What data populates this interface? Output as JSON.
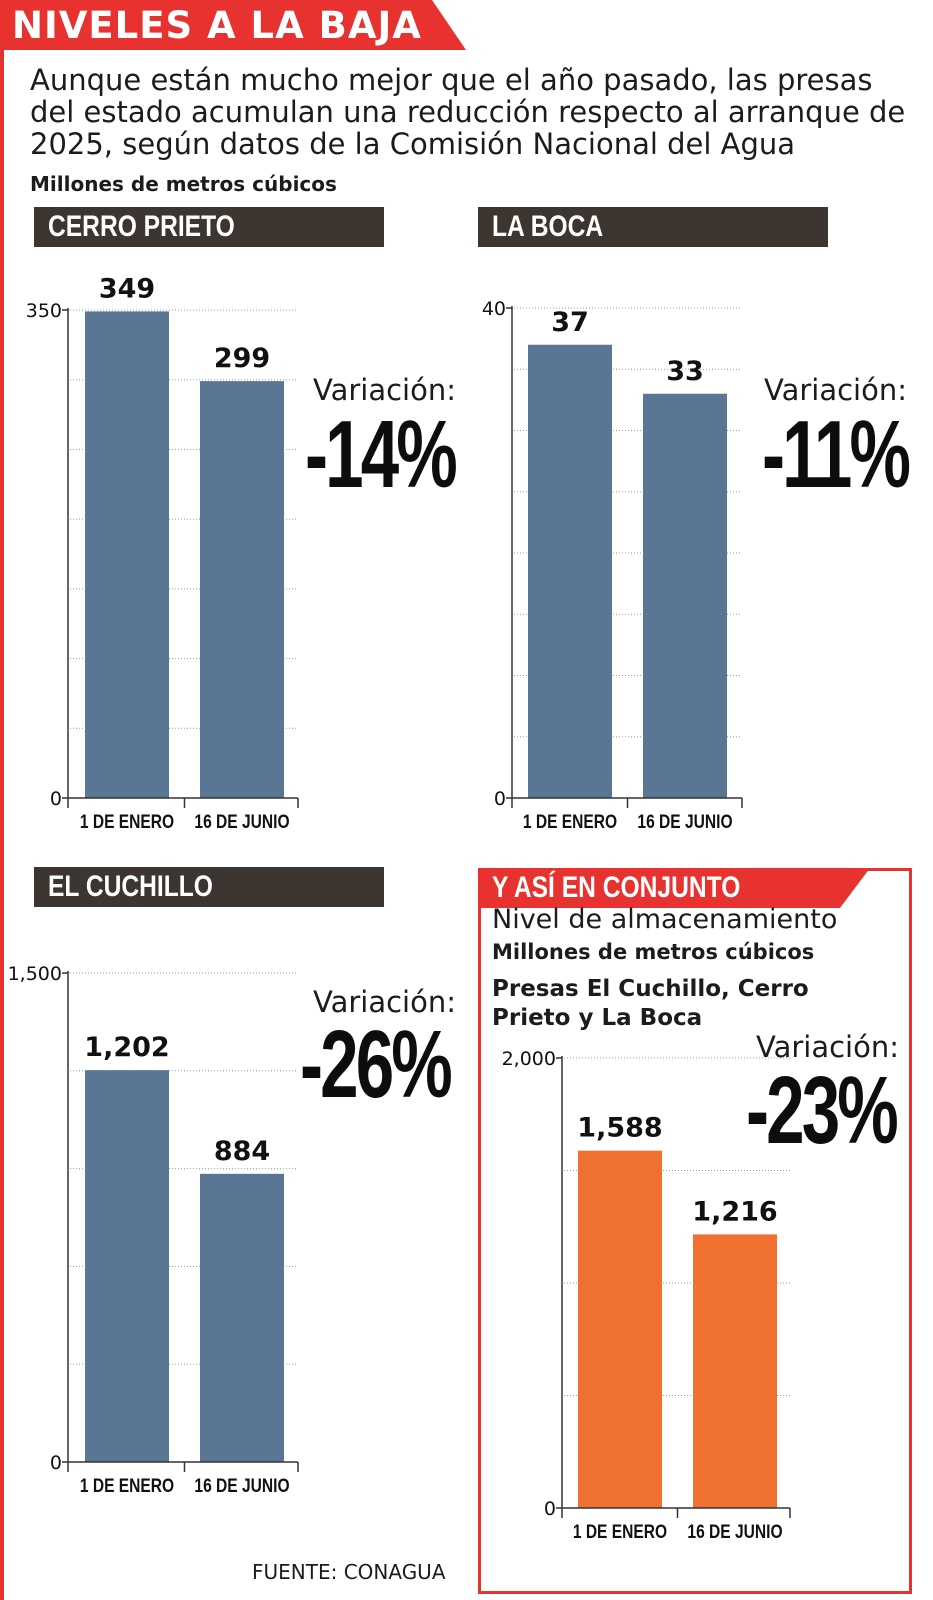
{
  "title": "NIVELES A LA BAJA",
  "intro": "Aunque están mucho mejor que el año pasado, las presas del estado acumulan una reducción respecto al arranque de 2025, según datos de la Comisión Nacional del Agua",
  "units": "Millones de metros cúbicos",
  "variation_label": "Variación:",
  "source": "FUENTE: CONAGUA",
  "total_panel": {
    "header": "Y ASÍ EN CONJUNTO",
    "subtitle": "Nivel de almacenamiento",
    "units": "Millones de metros cúbicos",
    "note": "Presas El Cuchillo, Cerro Prieto y La Boca"
  },
  "colors": {
    "accent": "#e8322f",
    "bar_blue": "#5a7695",
    "bar_orange": "#f07030",
    "header_bg": "#3d3530"
  },
  "chart_data": [
    {
      "type": "bar",
      "title": "CERRO PRIETO",
      "categories": [
        "1 DE ENERO",
        "16 DE JUNIO"
      ],
      "values": [
        349,
        299
      ],
      "value_labels": [
        "349",
        "299"
      ],
      "ylim": [
        0,
        350
      ],
      "yticks": [
        0,
        350
      ],
      "ytick_labels": [
        "0",
        "350"
      ],
      "gridlines": 7,
      "variation": "-14%"
    },
    {
      "type": "bar",
      "title": "LA BOCA",
      "categories": [
        "1 DE ENERO",
        "16 DE JUNIO"
      ],
      "values": [
        37,
        33
      ],
      "value_labels": [
        "37",
        "33"
      ],
      "ylim": [
        0,
        40
      ],
      "yticks": [
        0,
        40
      ],
      "ytick_labels": [
        "0",
        "40"
      ],
      "gridlines": 8,
      "variation": "-11%"
    },
    {
      "type": "bar",
      "title": "EL CUCHILLO",
      "categories": [
        "1 DE ENERO",
        "16 DE JUNIO"
      ],
      "values": [
        1202,
        884
      ],
      "value_labels": [
        "1,202",
        "884"
      ],
      "ylim": [
        0,
        1500
      ],
      "yticks": [
        0,
        1500
      ],
      "ytick_labels": [
        "0",
        "1,500"
      ],
      "gridlines": 5,
      "variation": "-26%"
    },
    {
      "type": "bar",
      "title": "Nivel de almacenamiento",
      "categories": [
        "1 DE ENERO",
        "16 DE JUNIO"
      ],
      "values": [
        1588,
        1216
      ],
      "value_labels": [
        "1,588",
        "1,216"
      ],
      "ylim": [
        0,
        2000
      ],
      "yticks": [
        0,
        2000
      ],
      "ytick_labels": [
        "0",
        "2,000"
      ],
      "gridlines": 4,
      "variation": "-23%"
    }
  ]
}
